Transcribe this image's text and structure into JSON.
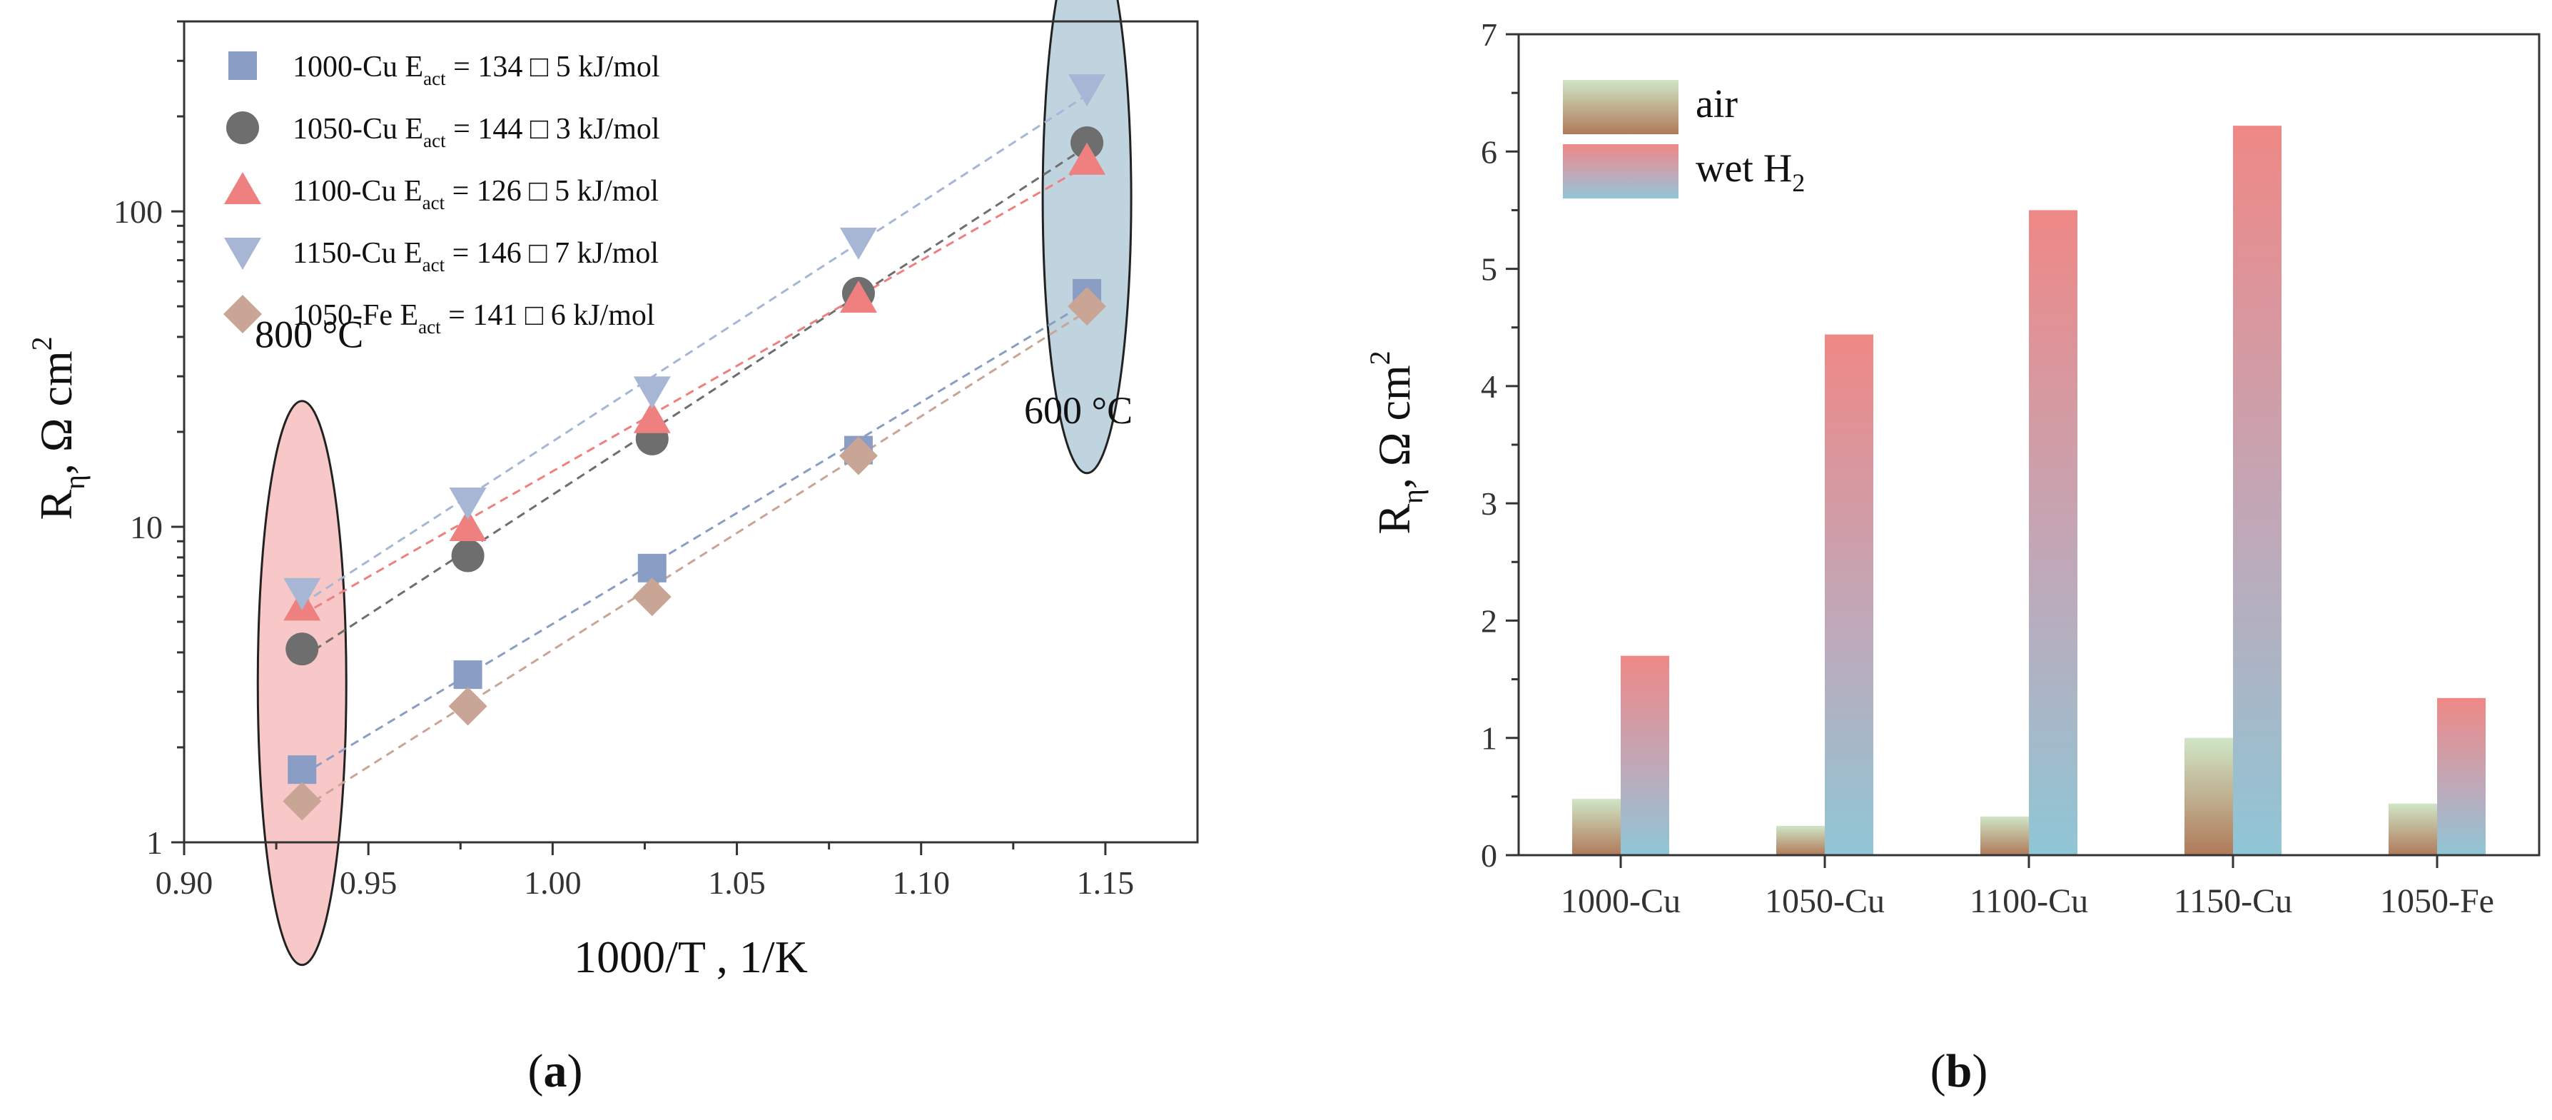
{
  "figure": {
    "panel_a_label": "a",
    "panel_b_label": "b"
  },
  "chart_data": [
    {
      "type": "scatter",
      "panel": "a",
      "xlabel": "1000/T , 1/K",
      "ylabel_main": "R",
      "ylabel_sub": "η",
      "ylabel_unit": ", Ω cm",
      "ylabel_sup": "2",
      "xlim": [
        0.9,
        1.175
      ],
      "ylim": [
        1,
        400
      ],
      "yscale": "log",
      "xticks": [
        0.9,
        0.95,
        1.0,
        1.05,
        1.1,
        1.15
      ],
      "xtick_labels": [
        "0.90",
        "0.95",
        "1.00",
        "1.05",
        "1.10",
        "1.15"
      ],
      "yticks": [
        1,
        10,
        100
      ],
      "ytick_labels": [
        "1",
        "10",
        "100"
      ],
      "legend_position": "top-left",
      "series": [
        {
          "name": "1000-Cu",
          "legend_label": "1000-Cu E",
          "legend_sub": "act",
          "legend_value": " = 134 □ 5 kJ/mol",
          "marker": "square",
          "color": "#8a9dc4",
          "x": [
            0.932,
            0.977,
            1.027,
            1.083,
            1.145
          ],
          "y": [
            1.7,
            3.4,
            7.4,
            17.5,
            55
          ]
        },
        {
          "name": "1050-Cu",
          "legend_label": "1050-Cu E",
          "legend_sub": "act",
          "legend_value": " = 144 □ 3 kJ/mol",
          "marker": "circle",
          "color": "#6e6e6e",
          "x": [
            0.932,
            0.977,
            1.027,
            1.083,
            1.145
          ],
          "y": [
            4.1,
            8.1,
            19,
            55,
            165
          ]
        },
        {
          "name": "1100-Cu",
          "legend_label": "1100-Cu E",
          "legend_sub": "act",
          "legend_value": " = 126 □ 5 kJ/mol",
          "marker": "triangle-up",
          "color": "#ee8080",
          "x": [
            0.932,
            0.977,
            1.027,
            1.083,
            1.145
          ],
          "y": [
            5.6,
            10,
            22,
            53,
            145
          ]
        },
        {
          "name": "1150-Cu",
          "legend_label": "1150-Cu E",
          "legend_sub": "act",
          "legend_value": " = 146 □ 7 kJ/mol",
          "marker": "triangle-down",
          "color": "#a6b6d4",
          "x": [
            0.932,
            0.977,
            1.027,
            1.083,
            1.145
          ],
          "y": [
            6.2,
            12,
            27,
            80,
            245
          ]
        },
        {
          "name": "1050-Fe",
          "legend_label": "1050-Fe E",
          "legend_sub": "act",
          "legend_value": " = 141 □ 6 kJ/mol",
          "marker": "diamond",
          "color": "#c9a595",
          "x": [
            0.932,
            0.977,
            1.027,
            1.083,
            1.145
          ],
          "y": [
            1.35,
            2.7,
            6,
            16.8,
            50
          ]
        }
      ],
      "annotations": [
        {
          "text": "800 °C",
          "x": 0.932,
          "y": 3.2,
          "fill": "#f5b5b5"
        },
        {
          "text": "600 °C",
          "x": 1.145,
          "y": 110,
          "fill": "#a9c6d4"
        }
      ]
    },
    {
      "type": "bar",
      "panel": "b",
      "ylabel_main": "R",
      "ylabel_sub": "η",
      "ylabel_unit": ", Ω cm",
      "ylabel_sup": "2",
      "categories": [
        "1000-Cu",
        "1050-Cu",
        "1100-Cu",
        "1150-Cu",
        "1050-Fe"
      ],
      "ylim": [
        0,
        7
      ],
      "yticks": [
        0,
        1,
        2,
        3,
        4,
        5,
        6,
        7
      ],
      "ytick_labels": [
        "0",
        "1",
        "2",
        "3",
        "4",
        "5",
        "6",
        "7"
      ],
      "legend_position": "top-left",
      "series": [
        {
          "name": "air",
          "legend_label": "air",
          "legend_sub": "",
          "values": [
            0.48,
            0.25,
            0.33,
            1.0,
            0.44
          ],
          "gradient": [
            "#c8e0c0",
            "#b07a5a"
          ]
        },
        {
          "name": "wet H2",
          "legend_label": "wet H",
          "legend_sub": "2",
          "values": [
            1.7,
            4.44,
            5.5,
            6.22,
            1.34
          ],
          "gradient": [
            "#ee8a88",
            "#8fc4d4"
          ]
        }
      ]
    }
  ]
}
